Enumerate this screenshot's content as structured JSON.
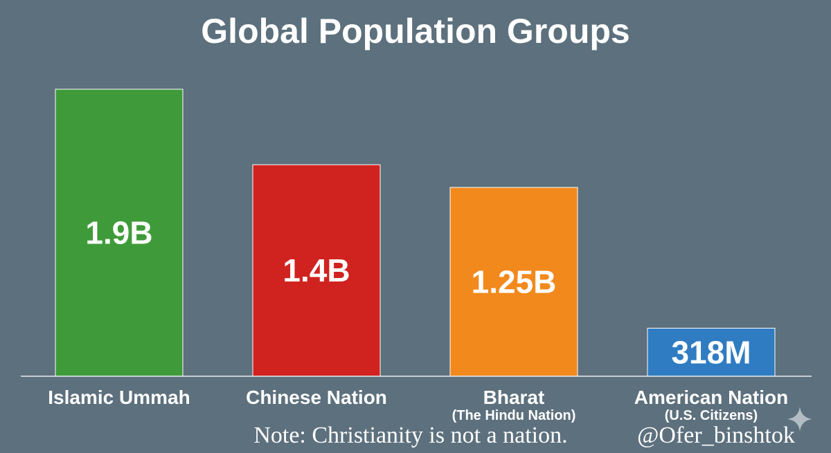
{
  "chart_data": {
    "type": "bar",
    "title": "Global Population Groups",
    "categories": [
      "Islamic Ummah",
      "Chinese Nation",
      "Bharat",
      "American Nation"
    ],
    "category_sublabels": [
      "",
      "",
      "(The Hindu Nation)",
      "(U.S. Citizens)"
    ],
    "values": [
      1900000000,
      1400000000,
      1250000000,
      318000000
    ],
    "value_labels": [
      "1.9B",
      "1.4B",
      "1.25B",
      "318M"
    ],
    "colors": [
      "#3f9b3a",
      "#d0231f",
      "#f2891d",
      "#2f7cc2"
    ],
    "ylim": [
      0,
      1900000000
    ],
    "grid": false,
    "legend": "none"
  },
  "footer": {
    "note": "Note: Christianity is not a nation.",
    "handle": "@Ofer_binshtok"
  },
  "icons": {
    "watermark": "sparkle-icon"
  }
}
